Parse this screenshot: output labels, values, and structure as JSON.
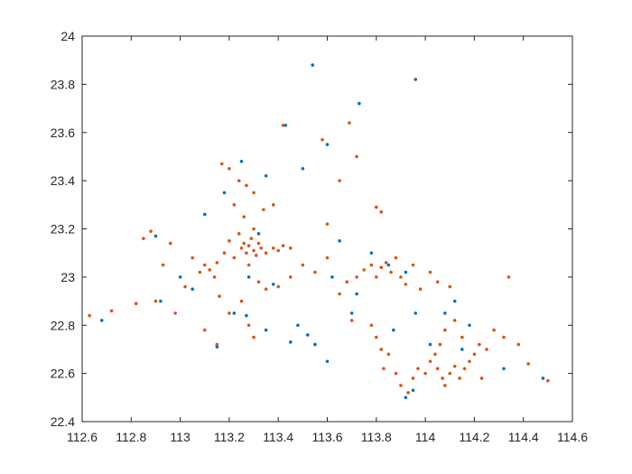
{
  "chart_data": {
    "type": "scatter",
    "xlim": [
      112.6,
      114.6
    ],
    "ylim": [
      22.4,
      24
    ],
    "xticks": [
      112.6,
      112.8,
      113,
      113.2,
      113.4,
      113.6,
      113.8,
      114,
      114.2,
      114.4,
      114.6
    ],
    "yticks": [
      22.4,
      22.6,
      22.8,
      23,
      23.2,
      23.4,
      23.6,
      23.8,
      24
    ],
    "series": [
      {
        "color": "#0072BD",
        "x": [
          113.54,
          113.96,
          113.73,
          113.43,
          113.6,
          113.5,
          113.35,
          113.25,
          113.18,
          113.1,
          112.9,
          112.92,
          112.68,
          113.0,
          113.05,
          113.15,
          113.22,
          113.27,
          113.35,
          113.48,
          113.52,
          113.55,
          113.6,
          113.45,
          113.32,
          113.28,
          113.38,
          113.65,
          113.72,
          113.78,
          113.85,
          113.92,
          113.96,
          114.08,
          114.12,
          114.18,
          113.92,
          113.95,
          114.02,
          114.15,
          114.48,
          114.32,
          113.87,
          113.7,
          113.62
        ],
        "y": [
          23.88,
          23.82,
          23.72,
          23.63,
          23.55,
          23.45,
          23.42,
          23.48,
          23.35,
          23.26,
          23.17,
          22.9,
          22.82,
          23.0,
          22.95,
          22.71,
          22.85,
          22.84,
          22.78,
          22.8,
          22.76,
          22.72,
          22.65,
          22.73,
          23.18,
          23.0,
          22.97,
          23.15,
          22.93,
          23.1,
          23.05,
          23.02,
          22.85,
          22.85,
          22.9,
          22.8,
          22.5,
          22.53,
          22.72,
          22.7,
          22.58,
          22.62,
          22.78,
          22.85,
          23.0
        ]
      },
      {
        "color": "#D95319",
        "x": [
          112.63,
          112.72,
          112.82,
          112.85,
          112.88,
          112.9,
          112.93,
          112.96,
          112.98,
          113.02,
          113.05,
          113.08,
          113.1,
          113.12,
          113.14,
          113.15,
          113.16,
          113.18,
          113.2,
          113.22,
          113.24,
          113.25,
          113.26,
          113.27,
          113.28,
          113.29,
          113.3,
          113.31,
          113.32,
          113.33,
          113.35,
          113.38,
          113.4,
          113.42,
          113.45,
          113.28,
          113.3,
          113.26,
          113.22,
          113.2,
          113.24,
          113.27,
          113.17,
          113.3,
          113.34,
          113.38,
          113.32,
          113.35,
          113.4,
          113.25,
          113.2,
          113.28,
          113.3,
          113.15,
          113.1,
          113.42,
          113.58,
          113.65,
          113.69,
          113.72,
          113.55,
          113.6,
          113.65,
          113.68,
          113.7,
          113.72,
          113.75,
          113.78,
          113.8,
          113.82,
          113.84,
          113.86,
          113.88,
          113.9,
          113.92,
          113.95,
          113.98,
          114.02,
          114.05,
          114.1,
          113.78,
          113.8,
          113.82,
          113.85,
          113.83,
          113.88,
          113.9,
          113.93,
          113.95,
          113.97,
          114.0,
          114.02,
          114.04,
          114.05,
          114.07,
          114.08,
          114.1,
          114.12,
          114.14,
          114.16,
          114.18,
          114.2,
          114.06,
          114.08,
          114.12,
          114.15,
          114.22,
          114.25,
          114.28,
          114.32,
          114.38,
          114.42,
          114.5,
          114.34,
          114.23,
          113.8,
          113.82,
          113.6,
          113.5,
          113.45
        ],
        "y": [
          22.84,
          22.86,
          22.89,
          23.16,
          23.19,
          22.9,
          23.05,
          23.14,
          22.85,
          22.96,
          23.08,
          23.02,
          23.05,
          23.03,
          23.0,
          23.06,
          22.92,
          23.1,
          23.15,
          23.08,
          23.18,
          23.12,
          23.14,
          23.1,
          23.13,
          23.16,
          23.11,
          23.09,
          23.14,
          23.12,
          23.1,
          23.12,
          23.11,
          23.13,
          23.12,
          23.05,
          23.2,
          23.25,
          23.3,
          23.45,
          23.4,
          23.38,
          23.47,
          23.35,
          23.28,
          23.3,
          22.98,
          22.95,
          22.96,
          22.9,
          22.85,
          22.8,
          22.75,
          22.72,
          22.78,
          23.63,
          23.57,
          23.4,
          23.64,
          23.5,
          23.02,
          23.08,
          22.93,
          22.98,
          22.82,
          23.0,
          23.03,
          23.05,
          23.0,
          23.04,
          23.06,
          23.02,
          23.08,
          23.0,
          22.97,
          23.05,
          22.95,
          23.02,
          22.98,
          22.96,
          22.8,
          22.75,
          22.7,
          22.68,
          22.62,
          22.6,
          22.55,
          22.52,
          22.58,
          22.62,
          22.6,
          22.65,
          22.68,
          22.62,
          22.58,
          22.55,
          22.6,
          22.63,
          22.58,
          22.62,
          22.65,
          22.68,
          22.72,
          22.78,
          22.82,
          22.75,
          22.72,
          22.7,
          22.78,
          22.75,
          22.72,
          22.64,
          22.57,
          23.0,
          22.58,
          23.29,
          23.27,
          23.22,
          23.05,
          23.0
        ]
      }
    ]
  }
}
